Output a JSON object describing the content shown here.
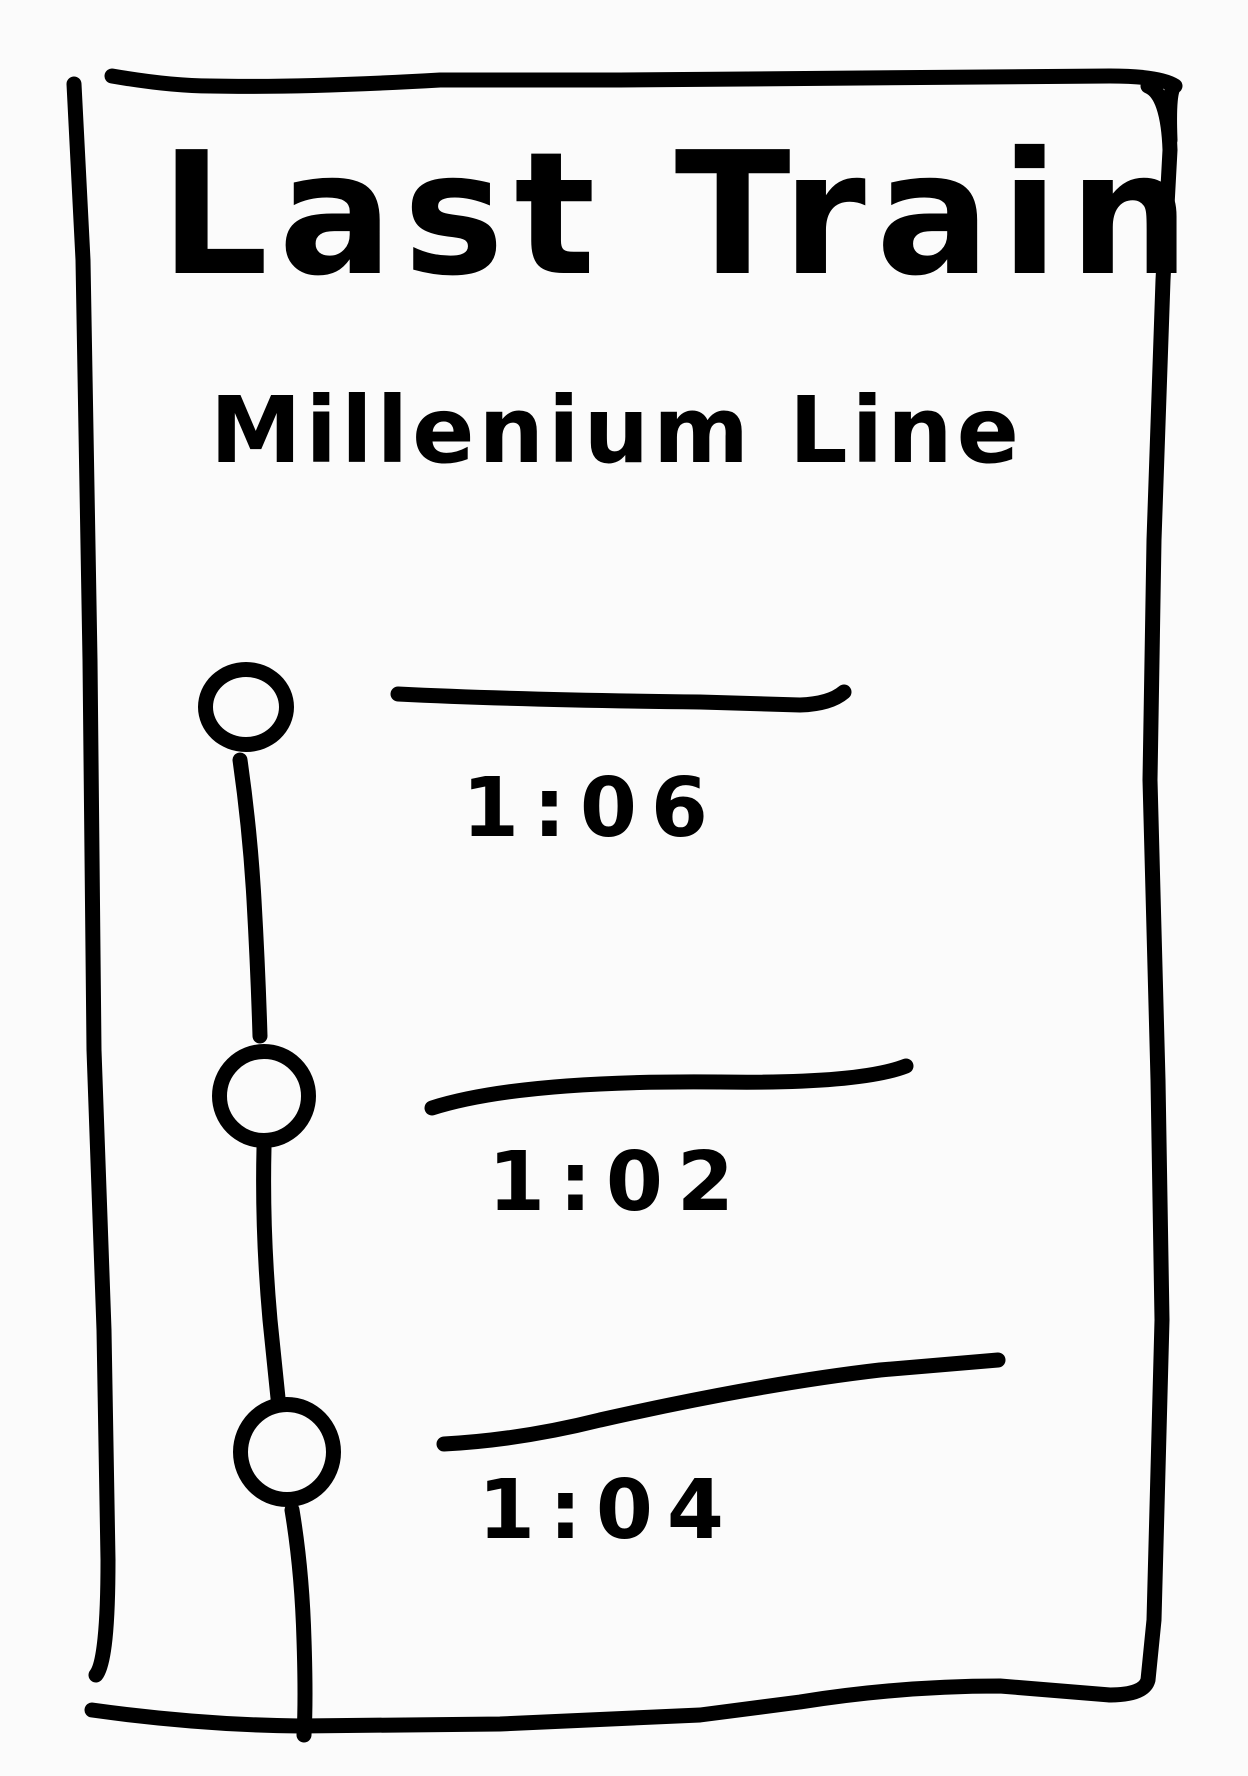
{
  "screen": {
    "title": "Last Train",
    "line_name": "Millenium Line"
  },
  "stops": [
    {
      "name_placeholder": "",
      "time": "1:06"
    },
    {
      "name_placeholder": "",
      "time": "1:02"
    },
    {
      "name_placeholder": "",
      "time": "1:04"
    }
  ],
  "colors": {
    "ink": "#000000",
    "paper": "#fbfbfb"
  }
}
